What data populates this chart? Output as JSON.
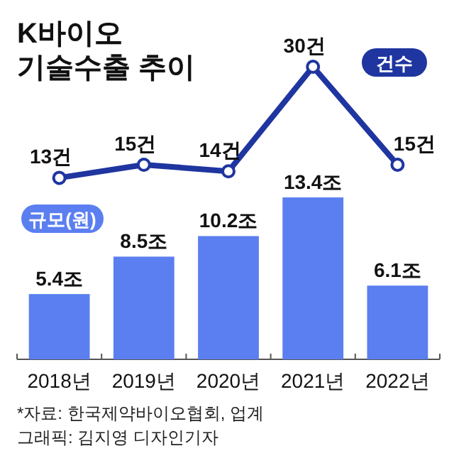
{
  "chart_data": [
    {
      "type": "line",
      "title": "K바이오\n기술수출 추이",
      "categories": [
        null,
        null,
        null,
        null,
        null
      ],
      "tick_labels": false,
      "marker": "circle",
      "series": [
        {
          "name": "건수",
          "color": "#1f35a0",
          "values": [
            13,
            15,
            14,
            30,
            15
          ],
          "value_labels": [
            "13건",
            "15건",
            "14건",
            "30건",
            "15건"
          ]
        }
      ]
    },
    {
      "type": "bar",
      "categories": [
        "2018년",
        "2019년",
        "2020년",
        "2021년",
        "2022년"
      ],
      "series": [
        {
          "name": "규모(원)",
          "color": "#5b7ff0",
          "values": [
            5.4,
            8.5,
            10.2,
            13.4,
            6.1
          ],
          "value_labels": [
            "5.4조",
            "8.5조",
            "10.2조",
            "13.4조",
            "6.1조"
          ]
        }
      ],
      "annotations": [
        "*자료: 한국제약바이오협회, 업계",
        "그래픽: 김지영 디자인기자"
      ]
    }
  ]
}
